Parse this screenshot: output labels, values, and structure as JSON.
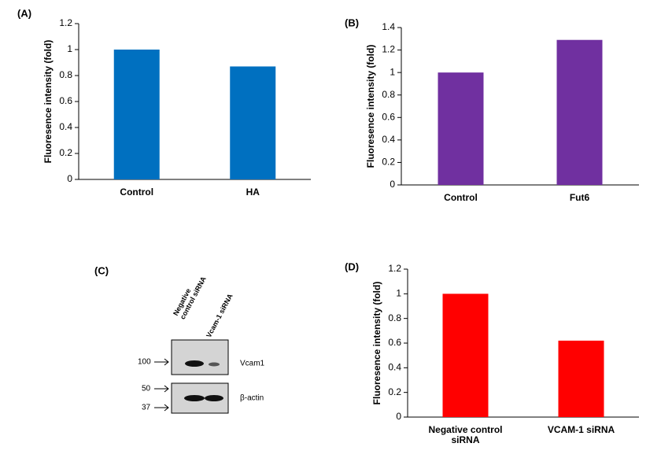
{
  "chart_data": [
    {
      "type": "bar",
      "panel_label": "(A)",
      "ylabel": "Fluoresence intensity (fold)",
      "categories": [
        "Control",
        "HA"
      ],
      "values": [
        1,
        0.87
      ],
      "color": "#0070c0",
      "ylim": [
        0,
        1.2
      ],
      "yticks": [
        0,
        0.2,
        0.4,
        0.6,
        0.8,
        1,
        1.2
      ],
      "grid": false
    },
    {
      "type": "bar",
      "panel_label": "(B)",
      "ylabel": "Fluoresence intensity (fold)",
      "categories": [
        "Control",
        "Fut6"
      ],
      "values": [
        1,
        1.29
      ],
      "color": "#7030a0",
      "ylim": [
        0,
        1.4
      ],
      "yticks": [
        0,
        0.2,
        0.4,
        0.6,
        0.8,
        1,
        1.2,
        1.4
      ],
      "grid": false
    },
    {
      "type": "bar",
      "panel_label": "(D)",
      "ylabel": "Fluoresence intensity (fold)",
      "categories": [
        "Negative control siRNA",
        "VCAM-1 siRNA"
      ],
      "values": [
        1,
        0.62
      ],
      "color": "#ff0000",
      "ylim": [
        0,
        1.2
      ],
      "yticks": [
        0,
        0.2,
        0.4,
        0.6,
        0.8,
        1,
        1.2
      ],
      "grid": false
    }
  ],
  "blot": {
    "panel_label": "(C)",
    "lanes": [
      "Negative control siRNA",
      "Vcam-1 siRNA"
    ],
    "proteins": [
      "Vcam1",
      "β-actin"
    ],
    "markers": [
      "100",
      "50",
      "37"
    ]
  }
}
